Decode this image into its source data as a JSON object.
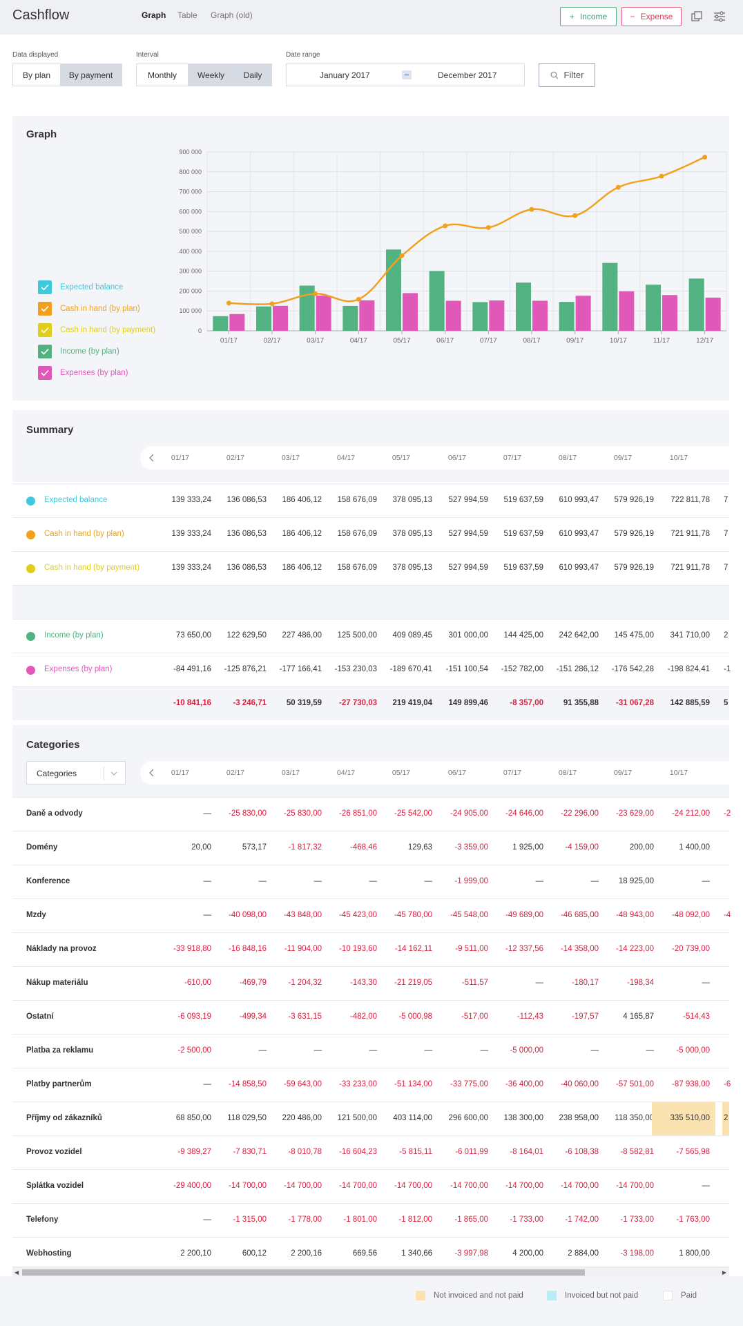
{
  "header": {
    "title": "Cashflow",
    "tabs": [
      "Graph",
      "Table",
      "Graph (old)"
    ],
    "income_label": "Income",
    "expense_label": "Expense",
    "income_color": "#3a9e72",
    "expense_color": "#d8405f"
  },
  "filters": {
    "data_displayed_label": "Data displayed",
    "data_displayed_options": [
      "By plan",
      "By payment"
    ],
    "data_displayed_selected": "By payment",
    "interval_label": "Interval",
    "interval_options": [
      "Monthly",
      "Weekly",
      "Daily"
    ],
    "interval_selected": "Weekly",
    "date_range_label": "Date range",
    "date_from": "January 2017",
    "date_to": "December 2017",
    "filter_button": "Filter"
  },
  "graph": {
    "title": "Graph",
    "legend": [
      {
        "label": "Expected balance",
        "color": "#3fc9dc"
      },
      {
        "label": "Cash in hand (by plan)",
        "color": "#f0a11d"
      },
      {
        "label": "Cash in hand (by payment)",
        "color": "#e0cf1a"
      },
      {
        "label": "Income (by plan)",
        "color": "#52b282"
      },
      {
        "label": "Expenses (by plan)",
        "color": "#e059b9"
      }
    ]
  },
  "chart_data": {
    "type": "bar",
    "categories": [
      "01/17",
      "02/17",
      "03/17",
      "04/17",
      "05/17",
      "06/17",
      "07/17",
      "08/17",
      "09/17",
      "10/17",
      "11/17",
      "12/17"
    ],
    "ylim": [
      0,
      900000
    ],
    "yticks": [
      "0",
      "100 000",
      "200 000",
      "300 000",
      "400 000",
      "500 000",
      "600 000",
      "700 000",
      "800 000",
      "900 000"
    ],
    "series": [
      {
        "name": "Income (by plan)",
        "kind": "bar",
        "color": "#52b282",
        "values": [
          73650,
          122629.5,
          227486,
          125500,
          409089.45,
          301000,
          144425,
          242642,
          145475,
          341710,
          232000,
          263000
        ]
      },
      {
        "name": "Expenses (by plan)",
        "kind": "bar",
        "color": "#e059b9",
        "values": [
          84491.16,
          125876.21,
          177166.41,
          153230.03,
          189670.41,
          151100.54,
          152782,
          151286.12,
          176542.28,
          198824.41,
          180000,
          167000
        ]
      },
      {
        "name": "Cash in hand (by plan)",
        "kind": "line",
        "color": "#f0a11d",
        "values": [
          139333.24,
          136086.53,
          186406.12,
          158676.09,
          378095.13,
          527994.59,
          519637.59,
          610993.47,
          579926.19,
          721911.78,
          778000,
          874000
        ]
      }
    ]
  },
  "summary": {
    "title": "Summary",
    "months": [
      "01/17",
      "02/17",
      "03/17",
      "04/17",
      "05/17",
      "06/17",
      "07/17",
      "08/17",
      "09/17",
      "10/17"
    ],
    "rows": [
      {
        "label": "Expected balance",
        "color": "#3fc9dc",
        "values": [
          "139 333,24",
          "136 086,53",
          "186 406,12",
          "158 676,09",
          "378 095,13",
          "527 994,59",
          "519 637,59",
          "610 993,47",
          "579 926,19",
          "722 811,78"
        ],
        "overflow": "7"
      },
      {
        "label": "Cash in hand (by plan)",
        "color": "#f0a11d",
        "values": [
          "139 333,24",
          "136 086,53",
          "186 406,12",
          "158 676,09",
          "378 095,13",
          "527 994,59",
          "519 637,59",
          "610 993,47",
          "579 926,19",
          "721 911,78"
        ],
        "overflow": "7"
      },
      {
        "label": "Cash in hand (by payment)",
        "color": "#e0cf1a",
        "values": [
          "139 333,24",
          "136 086,53",
          "186 406,12",
          "158 676,09",
          "378 095,13",
          "527 994,59",
          "519 637,59",
          "610 993,47",
          "579 926,19",
          "721 911,78"
        ],
        "overflow": "7"
      },
      {
        "label": "Income (by plan)",
        "color": "#52b282",
        "values": [
          "73 650,00",
          "122 629,50",
          "227 486,00",
          "125 500,00",
          "409 089,45",
          "301 000,00",
          "144 425,00",
          "242 642,00",
          "145 475,00",
          "341 710,00"
        ],
        "overflow": "2"
      },
      {
        "label": "Expenses (by plan)",
        "color": "#e059b9",
        "values": [
          "-84 491,16",
          "-125 876,21",
          "-177 166,41",
          "-153 230,03",
          "-189 670,41",
          "-151 100,54",
          "-152 782,00",
          "-151 286,12",
          "-176 542,28",
          "-198 824,41"
        ],
        "overflow": "-1"
      }
    ],
    "totals": [
      "-10 841,16",
      "-3 246,71",
      "50 319,59",
      "-27 730,03",
      "219 419,04",
      "149 899,46",
      "-8 357,00",
      "91 355,88",
      "-31 067,28",
      "142 885,59"
    ],
    "totals_overflow": "5"
  },
  "categories": {
    "title": "Categories",
    "select_value": "Categories",
    "months": [
      "01/17",
      "02/17",
      "03/17",
      "04/17",
      "05/17",
      "06/17",
      "07/17",
      "08/17",
      "09/17",
      "10/17"
    ],
    "rows": [
      {
        "label": "Daně a odvody",
        "values": [
          "—",
          "-25 830,00",
          "-25 830,00",
          "-26 851,00",
          "-25 542,00",
          "-24 905,00",
          "-24 646,00",
          "-22 296,00",
          "-23 629,00",
          "-24 212,00"
        ],
        "overflow": "-2"
      },
      {
        "label": "Domény",
        "values": [
          "20,00",
          "573,17",
          "-1 817,32",
          "-468,46",
          "129,63",
          "-3 359,00",
          "1 925,00",
          "-4 159,00",
          "200,00",
          "1 400,00"
        ],
        "overflow": ""
      },
      {
        "label": "Konference",
        "values": [
          "—",
          "—",
          "—",
          "—",
          "—",
          "-1 999,00",
          "—",
          "—",
          "18 925,00",
          "—"
        ],
        "overflow": ""
      },
      {
        "label": "Mzdy",
        "values": [
          "—",
          "-40 098,00",
          "-43 848,00",
          "-45 423,00",
          "-45 780,00",
          "-45 548,00",
          "-49 689,00",
          "-46 685,00",
          "-48 943,00",
          "-48 092,00"
        ],
        "overflow": "-4"
      },
      {
        "label": "Náklady na provoz",
        "values": [
          "-33 918,80",
          "-16 848,16",
          "-11 904,00",
          "-10 193,60",
          "-14 162,11",
          "-9 511,00",
          "-12 337,56",
          "-14 358,00",
          "-14 223,00",
          "-20 739,00"
        ],
        "overflow": ""
      },
      {
        "label": "Nákup materiálu",
        "values": [
          "-610,00",
          "-469,79",
          "-1 204,32",
          "-143,30",
          "-21 219,05",
          "-511,57",
          "—",
          "-180,17",
          "-198,34",
          "—"
        ],
        "overflow": ""
      },
      {
        "label": "Ostatní",
        "values": [
          "-6 093,19",
          "-499,34",
          "-3 631,15",
          "-482,00",
          "-5 000,98",
          "-517,00",
          "-112,43",
          "-197,57",
          "4 165,87",
          "-514,43"
        ],
        "overflow": ""
      },
      {
        "label": "Platba za reklamu",
        "values": [
          "-2 500,00",
          "—",
          "—",
          "—",
          "—",
          "—",
          "-5 000,00",
          "—",
          "—",
          "-5 000,00"
        ],
        "overflow": ""
      },
      {
        "label": "Platby partnerům",
        "values": [
          "—",
          "-14 858,50",
          "-59 643,00",
          "-33 233,00",
          "-51 134,00",
          "-33 775,00",
          "-36 400,00",
          "-40 060,00",
          "-57 501,00",
          "-87 938,00"
        ],
        "overflow": "-6"
      },
      {
        "label": "Příjmy od zákazníků",
        "values": [
          "68 850,00",
          "118 029,50",
          "220 486,00",
          "121 500,00",
          "403 114,00",
          "296 600,00",
          "138 300,00",
          "238 958,00",
          "118 350,00",
          "335 510,00"
        ],
        "overflow": "2",
        "highlight_index": 9
      },
      {
        "label": "Provoz vozidel",
        "values": [
          "-9 389,27",
          "-7 830,71",
          "-8 010,78",
          "-16 604,23",
          "-5 815,11",
          "-6 011,99",
          "-8 164,01",
          "-6 108,38",
          "-8 582,81",
          "-7 565,98"
        ],
        "overflow": ""
      },
      {
        "label": "Splátka vozidel",
        "values": [
          "-29 400,00",
          "-14 700,00",
          "-14 700,00",
          "-14 700,00",
          "-14 700,00",
          "-14 700,00",
          "-14 700,00",
          "-14 700,00",
          "-14 700,00",
          "—"
        ],
        "overflow": ""
      },
      {
        "label": "Telefony",
        "values": [
          "—",
          "-1 315,00",
          "-1 778,00",
          "-1 801,00",
          "-1 812,00",
          "-1 865,00",
          "-1 733,00",
          "-1 742,00",
          "-1 733,00",
          "-1 763,00"
        ],
        "overflow": ""
      },
      {
        "label": "Webhosting",
        "values": [
          "2 200,10",
          "600,12",
          "2 200,16",
          "669,56",
          "1 340,66",
          "-3 997,98",
          "4 200,00",
          "2 884,00",
          "-3 198,00",
          "1 800,00"
        ],
        "overflow": ""
      }
    ]
  },
  "bottom_legend": [
    {
      "label": "Not invoiced and not paid",
      "color": "#fbe3b1"
    },
    {
      "label": "Invoiced but not paid",
      "color": "#b9ebf4"
    },
    {
      "label": "Paid",
      "color": "#ffffff"
    }
  ]
}
